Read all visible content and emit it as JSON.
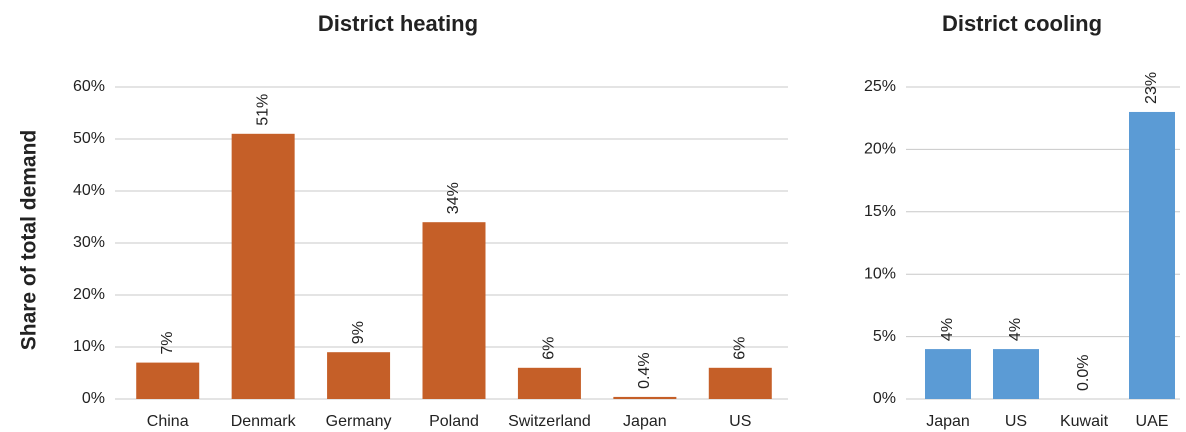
{
  "chart_data": [
    {
      "type": "bar",
      "title": "District heating",
      "y_label": "Share of total demand",
      "categories": [
        "China",
        "Denmark",
        "Germany",
        "Poland",
        "Switzerland",
        "Japan",
        "US"
      ],
      "values": [
        7,
        51,
        9,
        34,
        6,
        0.4,
        6
      ],
      "value_labels": [
        "7%",
        "51%",
        "9%",
        "34%",
        "6%",
        "0.4%",
        "6%"
      ],
      "color": "#c55f28",
      "ylim": [
        0,
        60
      ],
      "yticks": [
        {
          "value": 0,
          "label": "0%"
        },
        {
          "value": 10,
          "label": "10%"
        },
        {
          "value": 20,
          "label": "20%"
        },
        {
          "value": 30,
          "label": "30%"
        },
        {
          "value": 40,
          "label": "40%"
        },
        {
          "value": 50,
          "label": "50%"
        },
        {
          "value": 60,
          "label": "60%"
        }
      ],
      "grid": true
    },
    {
      "type": "bar",
      "title": "District cooling",
      "categories": [
        "Japan",
        "US",
        "Kuwait",
        "UAE"
      ],
      "values": [
        4,
        4,
        0,
        23
      ],
      "value_labels": [
        "4%",
        "4%",
        "0.0%",
        "23%"
      ],
      "color": "#5b9bd5",
      "ylim": [
        0,
        25
      ],
      "yticks": [
        {
          "value": 0,
          "label": "0%"
        },
        {
          "value": 5,
          "label": "5%"
        },
        {
          "value": 10,
          "label": "10%"
        },
        {
          "value": 15,
          "label": "15%"
        },
        {
          "value": 20,
          "label": "20%"
        },
        {
          "value": 25,
          "label": "25%"
        }
      ],
      "grid": true
    }
  ]
}
